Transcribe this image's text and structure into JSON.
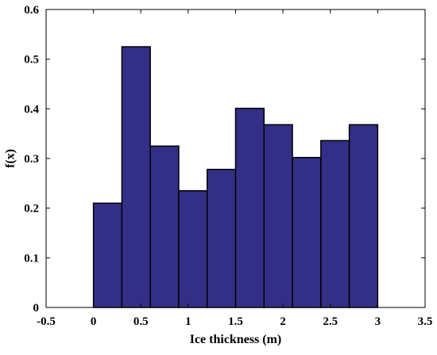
{
  "chart_data": {
    "type": "bar",
    "title": "",
    "xlabel": "Ice thickness (m)",
    "ylabel": "f(x)",
    "xlim": [
      -0.5,
      3.5
    ],
    "ylim": [
      0,
      0.6
    ],
    "xticks": [
      "-0.5",
      "0",
      "0.5",
      "1",
      "1.5",
      "2",
      "2.5",
      "3",
      "3.5"
    ],
    "yticks": [
      "0",
      "0.1",
      "0.2",
      "0.3",
      "0.4",
      "0.5",
      "0.6"
    ],
    "grid": false,
    "legend": "none",
    "bin_edges": [
      0,
      0.3,
      0.6,
      0.9,
      1.2,
      1.5,
      1.8,
      2.1,
      2.4,
      2.7,
      3.0
    ],
    "values": [
      0.21,
      0.525,
      0.325,
      0.235,
      0.278,
      0.401,
      0.368,
      0.302,
      0.336,
      0.368
    ],
    "bar_color": "#332f86",
    "edge_color": "#000000"
  }
}
